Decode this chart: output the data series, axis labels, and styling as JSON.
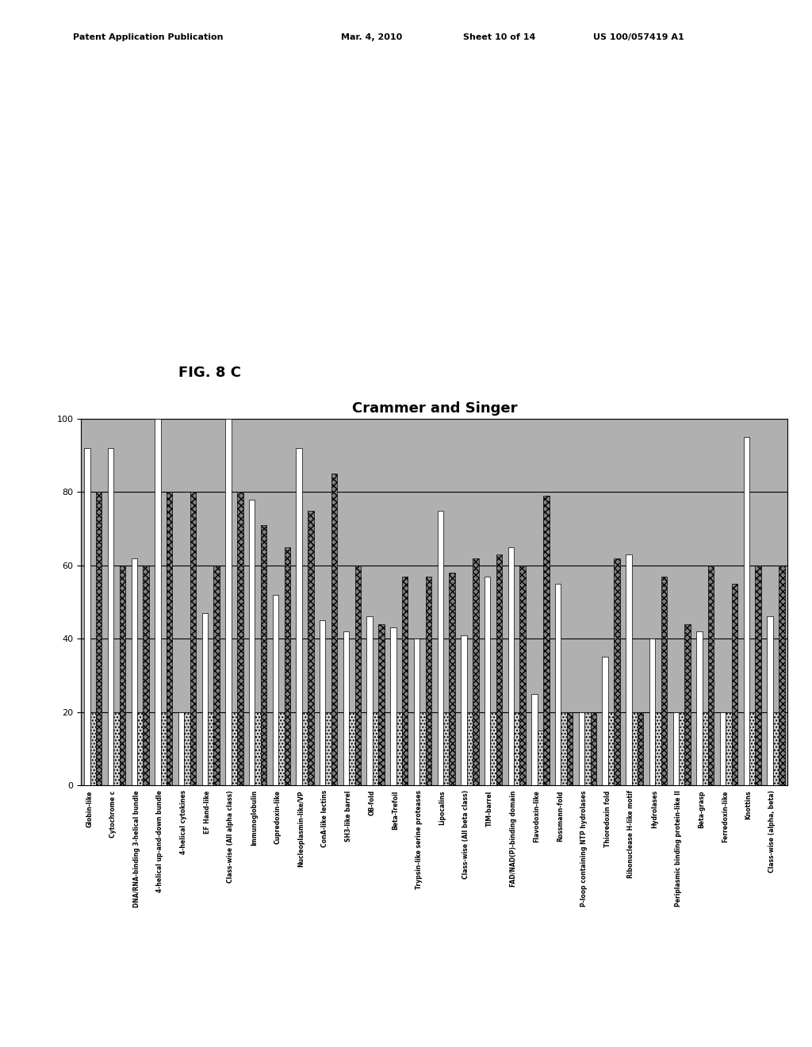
{
  "title": "Crammer and Singer",
  "fig_label": "FIG. 8 C",
  "patent_header": "Patent Application Publication    Mar. 4, 2010   Sheet 10 of 14    US 100/057419 A1",
  "ylim": [
    0,
    100
  ],
  "yticks": [
    0,
    20,
    40,
    60,
    80,
    100
  ],
  "categories": [
    "Globin-like",
    "Cytochrome c",
    "DNA/RNA-binding 3-helical bundle",
    "4-helical up-and-down bundle",
    "4-helical cytokines",
    "EF Hand-like",
    "Class-wise (All alpha class)",
    "Immunoglobulin",
    "Cupredoxin-like",
    "Nucleoplasmin-like/VP",
    "ConA-like lectins",
    "SH3-like barrel",
    "OB-fold",
    "Beta-Trefoil",
    "Trypsin-like serine proteases",
    "Lipocalins",
    "Class-wise (All beta class)",
    "TIM-barrel",
    "FAD/NAD(P)-binding domain",
    "Flavodoxin-like",
    "Rossmann-fold",
    "P-loop containing NTP hydrolases",
    "Thioredoxin fold",
    "Ribonuclease H-like motif",
    "Hydrolases",
    "Periplasmic binding protein-like II",
    "Beta-grasp",
    "Ferredoxin-like",
    "Knottins",
    "Class-wise (alpha, beta)"
  ],
  "bar1_values": [
    92,
    92,
    62,
    100,
    20,
    47,
    100,
    78,
    52,
    92,
    45,
    42,
    46,
    43,
    40,
    75,
    41,
    57,
    65,
    25,
    55,
    20,
    35,
    63,
    40,
    20,
    42,
    20,
    95,
    46
  ],
  "bar2_values": [
    20,
    20,
    20,
    20,
    20,
    20,
    20,
    20,
    20,
    20,
    20,
    20,
    20,
    20,
    20,
    20,
    20,
    20,
    20,
    15,
    20,
    20,
    20,
    20,
    20,
    20,
    20,
    20,
    20,
    20
  ],
  "bar3_values": [
    80,
    60,
    60,
    80,
    80,
    60,
    80,
    71,
    65,
    75,
    85,
    60,
    44,
    57,
    57,
    58,
    62,
    63,
    60,
    79,
    20,
    20,
    62,
    20,
    57,
    44,
    60,
    55,
    60,
    60
  ],
  "background_color": "#b0b0b0",
  "bar_width": 0.25
}
